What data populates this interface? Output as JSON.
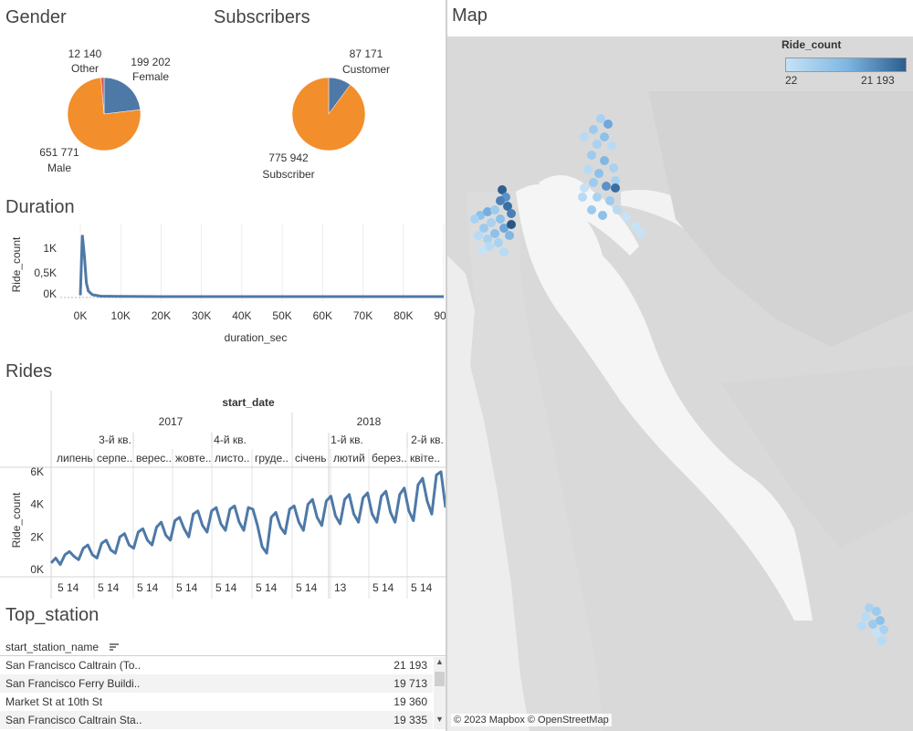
{
  "gender": {
    "title": "Gender",
    "slices": [
      {
        "label": "Female",
        "value": 199202,
        "value_text": "199 202",
        "color": "#4e79a7"
      },
      {
        "label": "Other",
        "value": 12140,
        "value_text": "12 140",
        "color": "#e15759"
      },
      {
        "label": "Male",
        "value": 651771,
        "value_text": "651 771",
        "color": "#f28e2b"
      }
    ]
  },
  "subscribers": {
    "title": "Subscribers",
    "slices": [
      {
        "label": "Customer",
        "value": 87171,
        "value_text": "87 171",
        "color": "#4e79a7"
      },
      {
        "label": "Subscriber",
        "value": 775942,
        "value_text": "775 942",
        "color": "#f28e2b"
      }
    ]
  },
  "duration": {
    "title": "Duration",
    "xlabel": "duration_sec",
    "ylabel": "Ride_count",
    "x_ticks": [
      "0K",
      "10K",
      "20K",
      "30K",
      "40K",
      "50K",
      "60K",
      "70K",
      "80K",
      "90K"
    ],
    "y_ticks": [
      "0K",
      "0,5K",
      "1K"
    ]
  },
  "rides": {
    "title": "Rides",
    "header_title": "start_date",
    "years": [
      "2017",
      "2018"
    ],
    "quarters": [
      "3-й кв.",
      "4-й кв.",
      "1-й кв.",
      "2-й кв."
    ],
    "months": [
      "липень",
      "серпе..",
      "верес..",
      "жовте..",
      "листо..",
      "груде..",
      "січень",
      "лютий",
      "берез..",
      "квіте.."
    ],
    "day_ticks": [
      "5 14",
      "5 14",
      "5 14",
      "5 14",
      "5 14",
      "5 14",
      "5 14",
      "13",
      "5 14",
      "5 14"
    ],
    "ylabel": "Ride_count",
    "y_ticks": [
      "0K",
      "2K",
      "4K",
      "6K"
    ]
  },
  "top_station": {
    "title": "Top_station",
    "column_header": "start_station_name",
    "rows": [
      {
        "name": "San Francisco Caltrain (To..",
        "value": "21 193"
      },
      {
        "name": "San Francisco Ferry Buildi..",
        "value": "19 713"
      },
      {
        "name": "Market St at 10th St",
        "value": "19 360"
      },
      {
        "name": "San Francisco Caltrain Sta..",
        "value": "19 335"
      }
    ]
  },
  "map": {
    "title": "Map",
    "legend_title": "Ride_count",
    "legend_min": "22",
    "legend_max": "21 193",
    "attribution": "© 2023 Mapbox © OpenStreetMap"
  },
  "chart_data": [
    {
      "type": "pie",
      "title": "Gender",
      "categories": [
        "Female",
        "Other",
        "Male"
      ],
      "values": [
        199202,
        12140,
        651771
      ]
    },
    {
      "type": "pie",
      "title": "Subscribers",
      "categories": [
        "Customer",
        "Subscriber"
      ],
      "values": [
        87171,
        775942
      ]
    },
    {
      "type": "line",
      "title": "Duration",
      "xlabel": "duration_sec",
      "ylabel": "Ride_count",
      "xlim": [
        0,
        90000
      ],
      "ylim": [
        0,
        1400
      ],
      "x": [
        0,
        500,
        1000,
        1500,
        2000,
        3000,
        5000,
        10000,
        20000,
        40000,
        60000,
        90000
      ],
      "y": [
        30,
        1350,
        900,
        300,
        120,
        40,
        10,
        3,
        1,
        0,
        0,
        0
      ]
    },
    {
      "type": "line",
      "title": "Rides",
      "xlabel": "start_date",
      "ylabel": "Ride_count",
      "ylim": [
        0,
        6500
      ],
      "x_range": [
        "2017-06-28",
        "2018-04-30"
      ],
      "y": [
        400,
        700,
        300,
        900,
        1100,
        800,
        600,
        1300,
        1500,
        900,
        700,
        1600,
        1800,
        1200,
        1000,
        2000,
        2200,
        1500,
        1300,
        2300,
        2500,
        1800,
        1500,
        2600,
        2900,
        2100,
        1800,
        3000,
        3200,
        2500,
        2000,
        3400,
        3600,
        2700,
        2300,
        3600,
        3800,
        2800,
        2400,
        3700,
        3900,
        2900,
        2400,
        3800,
        3700,
        2700,
        1400,
        1000,
        3200,
        3500,
        2600,
        2200,
        3700,
        3900,
        2900,
        2400,
        4000,
        4300,
        3200,
        2700,
        4200,
        4500,
        3300,
        2800,
        4300,
        4600,
        3400,
        2900,
        4400,
        4700,
        3400,
        2900,
        4500,
        4800,
        3500,
        2900,
        4600,
        5000,
        3600,
        3000,
        5200,
        5600,
        4200,
        3400,
        5800,
        6000,
        3800
      ]
    }
  ]
}
